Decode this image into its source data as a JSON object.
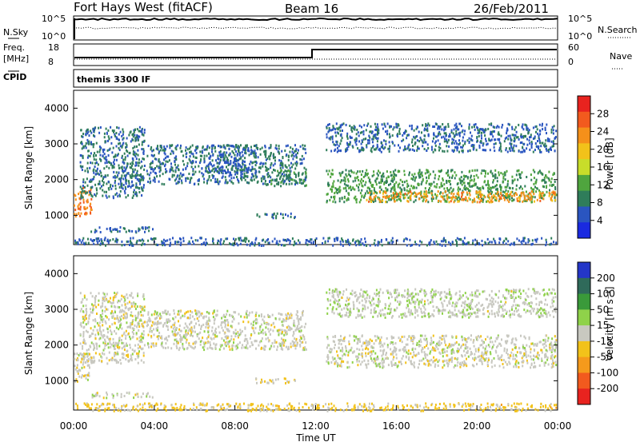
{
  "header": {
    "station": "Fort Hays West (fitACF)",
    "beam": "Beam 16",
    "date": "26/Feb/2011"
  },
  "top_panels": {
    "nsky_label": "N.Sky",
    "nsky_ticks": [
      "10^5",
      "10^0"
    ],
    "nsearch_label": "N.Search",
    "nsearch_ticks": [
      "10^5",
      "10^0"
    ],
    "freq_label_1": "Freq.",
    "freq_label_2": "[MHz]",
    "freq_ticks": [
      "18",
      "8"
    ],
    "nave_label": "Nave",
    "nave_ticks": [
      "60",
      "0"
    ],
    "cpid_label": "CPID",
    "cpid_text": "themis 3300 IF"
  },
  "power_colorbar": {
    "label": "Power [dB]",
    "ticks": [
      "28",
      "24",
      "20",
      "16",
      "12",
      "8",
      "4"
    ],
    "colors": [
      "#e8231f",
      "#f25a1e",
      "#f5901a",
      "#f2c21a",
      "#c8dd2a",
      "#4fa53e",
      "#2f7d5a",
      "#2a55c0",
      "#1a2ae0"
    ]
  },
  "velocity_colorbar": {
    "label": "Velocity [m s⁻¹]",
    "ticks": [
      "200",
      "100",
      "50",
      "15",
      "-15",
      "-50",
      "-100",
      "-200"
    ],
    "colors": [
      "#2436c8",
      "#2f6a5a",
      "#3a9a3a",
      "#8fd24a",
      "#c8c8c0",
      "#f2c21a",
      "#f59a1c",
      "#f25a1e",
      "#e8231f"
    ]
  },
  "axes": {
    "ylabel": "Slant Range [km]",
    "yticks": [
      "4000",
      "3000",
      "2000",
      "1000"
    ],
    "xlabel": "Time UT",
    "xticks": [
      "00:00",
      "04:00",
      "08:00",
      "12:00",
      "16:00",
      "20:00",
      "00:00"
    ]
  },
  "chart_data": [
    {
      "type": "heatmap",
      "name": "Power",
      "xlabel": "Time UT",
      "ylabel": "Slant Range [km]",
      "x_range_hours": [
        0,
        24
      ],
      "y_range_km": [
        180,
        4500
      ],
      "zlabel": "Power [dB]",
      "z_range": [
        0,
        30
      ],
      "regions": [
        {
          "t": [
            0.0,
            0.9
          ],
          "r": [
            1000,
            1800
          ],
          "level": 24
        },
        {
          "t": [
            0.3,
            3.5
          ],
          "r": [
            1500,
            3500
          ],
          "level": 6
        },
        {
          "t": [
            0.7,
            4.0
          ],
          "r": [
            550,
            700
          ],
          "level": 5
        },
        {
          "t": [
            3.6,
            11.5
          ],
          "r": [
            1900,
            3000
          ],
          "level": 6
        },
        {
          "t": [
            7.0,
            9.0
          ],
          "r": [
            2200,
            3000
          ],
          "level": 5
        },
        {
          "t": [
            9.5,
            11.5
          ],
          "r": [
            1850,
            2300
          ],
          "level": 8
        },
        {
          "t": [
            9.0,
            11.0
          ],
          "r": [
            950,
            1100
          ],
          "level": 6
        },
        {
          "t": [
            12.5,
            23.9
          ],
          "r": [
            1400,
            2300
          ],
          "level": 10
        },
        {
          "t": [
            14.5,
            23.9
          ],
          "r": [
            1400,
            1700
          ],
          "level": 22
        },
        {
          "t": [
            12.5,
            23.9
          ],
          "r": [
            2800,
            3600
          ],
          "level": 5
        },
        {
          "t": [
            0.0,
            23.9
          ],
          "r": [
            180,
            400
          ],
          "level": 5
        }
      ]
    },
    {
      "type": "heatmap",
      "name": "Velocity",
      "xlabel": "Time UT",
      "ylabel": "Slant Range [km]",
      "x_range_hours": [
        0,
        24
      ],
      "y_range_km": [
        180,
        4500
      ],
      "zlabel": "Velocity [m s⁻¹]",
      "z_range": [
        -200,
        200
      ],
      "regions": [
        {
          "t": [
            0.0,
            0.9
          ],
          "r": [
            1000,
            1800
          ],
          "level": -5
        },
        {
          "t": [
            0.3,
            3.5
          ],
          "r": [
            1500,
            3500
          ],
          "level": 0
        },
        {
          "t": [
            0.7,
            4.0
          ],
          "r": [
            550,
            700
          ],
          "level": 0
        },
        {
          "t": [
            3.6,
            11.5
          ],
          "r": [
            1900,
            3000
          ],
          "level": 0
        },
        {
          "t": [
            9.0,
            11.0
          ],
          "r": [
            950,
            1100
          ],
          "level": -30
        },
        {
          "t": [
            12.5,
            23.9
          ],
          "r": [
            1400,
            2300
          ],
          "level": 0
        },
        {
          "t": [
            12.5,
            23.9
          ],
          "r": [
            2800,
            3600
          ],
          "level": 10
        },
        {
          "t": [
            0.0,
            23.9
          ],
          "r": [
            180,
            400
          ],
          "level": -40
        }
      ]
    }
  ]
}
